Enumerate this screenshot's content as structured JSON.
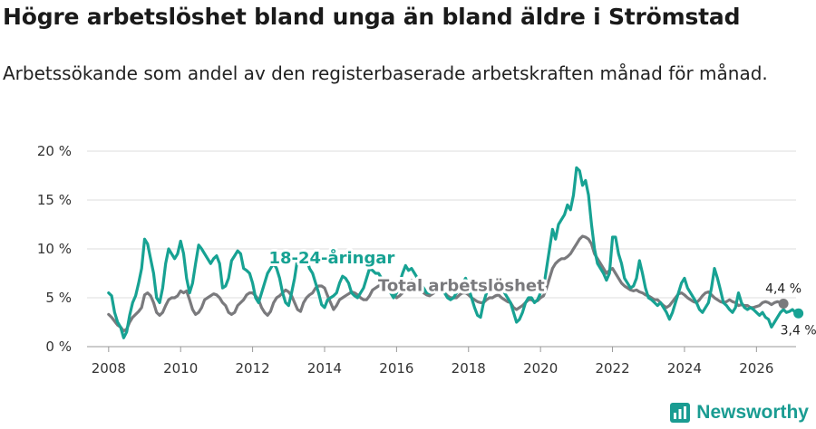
{
  "title": "Högre arbetslöshet bland unga än bland äldre i Strömstad",
  "subtitle": "Arbetssökande som andel av den registerbaserade arbetskraften månad för månad.",
  "brand": {
    "name": "Newsworthy",
    "icon": "newsworthy-logo-icon",
    "color": "#1a9c92"
  },
  "colors": {
    "youth": "#17a293",
    "total": "#7a7a7d",
    "grid": "#dcdcdc",
    "axis": "#999999"
  },
  "chart_data": {
    "type": "line",
    "title": "Högre arbetslöshet bland unga än bland äldre i Strömstad",
    "xlabel": "",
    "ylabel": "",
    "xlim": [
      2007.4,
      2027.1
    ],
    "ylim": [
      0,
      20
    ],
    "x_ticks": [
      2008,
      2010,
      2012,
      2014,
      2016,
      2018,
      2020,
      2022,
      2024,
      2026
    ],
    "x_tick_labels": [
      "2008",
      "2010",
      "2012",
      "2014",
      "2016",
      "2018",
      "2020",
      "2022",
      "2024",
      "2026"
    ],
    "y_ticks": [
      0,
      5,
      10,
      15,
      20
    ],
    "y_tick_labels": [
      "0 %",
      "5 %",
      "10 %",
      "15 %",
      "20 %"
    ],
    "grid": true,
    "series": [
      {
        "name": "18-24-åringar",
        "label_anchor": [
          2014.2,
          8.5
        ],
        "end_label": "3,4 %",
        "x_start": 2008.0,
        "step": 0.0833333,
        "values": [
          5.5,
          5.2,
          3.5,
          2.5,
          2.0,
          0.9,
          1.5,
          3.2,
          4.5,
          5.2,
          6.5,
          8.0,
          11.0,
          10.5,
          9.0,
          7.5,
          5.0,
          4.5,
          6.0,
          8.5,
          10.0,
          9.5,
          9.0,
          9.5,
          10.8,
          9.5,
          7.0,
          5.5,
          6.5,
          8.5,
          10.4,
          10.0,
          9.5,
          9.0,
          8.5,
          9.0,
          9.3,
          8.5,
          6.0,
          6.2,
          7.0,
          8.8,
          9.3,
          9.8,
          9.5,
          8.0,
          7.8,
          7.5,
          6.5,
          5.0,
          4.5,
          5.5,
          6.5,
          7.5,
          8.0,
          8.5,
          8.0,
          7.0,
          5.5,
          4.5,
          4.2,
          5.5,
          7.0,
          9.0,
          9.5,
          9.8,
          9.0,
          8.0,
          7.5,
          6.5,
          5.5,
          4.3,
          4.0,
          4.8,
          5.0,
          5.2,
          5.5,
          6.5,
          7.2,
          7.0,
          6.5,
          5.5,
          5.2,
          5.0,
          5.5,
          6.0,
          7.0,
          8.0,
          7.8,
          7.5,
          7.5,
          7.0,
          6.5,
          6.0,
          5.5,
          5.0,
          5.5,
          6.5,
          7.5,
          8.3,
          7.8,
          8.0,
          7.5,
          7.0,
          6.5,
          6.0,
          5.5,
          5.5,
          6.0,
          6.2,
          6.0,
          5.8,
          5.5,
          5.0,
          4.8,
          5.0,
          5.5,
          6.0,
          6.5,
          7.0,
          6.0,
          5.0,
          4.0,
          3.2,
          3.0,
          4.5,
          5.5,
          6.0,
          6.5,
          6.8,
          6.5,
          6.0,
          5.5,
          5.0,
          4.5,
          3.5,
          2.5,
          2.8,
          3.5,
          4.5,
          5.0,
          5.0,
          4.5,
          4.8,
          5.5,
          6.0,
          8.0,
          10.0,
          12.0,
          11.0,
          12.5,
          13.0,
          13.5,
          14.5,
          14.0,
          15.5,
          18.3,
          18.0,
          16.5,
          17.0,
          15.5,
          12.5,
          10.0,
          8.5,
          8.0,
          7.5,
          6.8,
          7.5,
          11.2,
          11.2,
          9.5,
          8.5,
          7.0,
          6.5,
          6.0,
          6.2,
          7.0,
          8.8,
          7.5,
          6.0,
          5.0,
          4.8,
          4.5,
          4.2,
          4.5,
          4.0,
          3.5,
          2.8,
          3.5,
          4.5,
          5.5,
          6.5,
          7.0,
          6.0,
          5.5,
          5.0,
          4.5,
          3.8,
          3.5,
          4.0,
          4.5,
          6.0,
          8.0,
          7.0,
          5.8,
          4.5,
          4.2,
          3.8,
          3.5,
          4.0,
          5.5,
          4.5,
          4.0,
          3.8,
          4.0,
          3.8,
          3.5,
          3.2,
          3.5,
          3.0,
          2.8,
          2.0,
          2.5,
          3.0,
          3.5,
          3.8,
          3.5,
          3.6,
          3.8,
          3.5,
          3.4
        ]
      },
      {
        "name": "Total arbetslöshet",
        "label_anchor": [
          2017.8,
          5.7
        ],
        "end_label": "4,4 %",
        "x_start": 2008.0,
        "step": 0.0833333,
        "values": [
          3.3,
          3.0,
          2.6,
          2.2,
          2.0,
          1.6,
          1.8,
          2.5,
          3.0,
          3.3,
          3.6,
          4.0,
          5.3,
          5.5,
          5.2,
          4.5,
          3.5,
          3.2,
          3.5,
          4.2,
          4.8,
          5.0,
          5.0,
          5.2,
          5.7,
          5.5,
          5.7,
          4.8,
          3.8,
          3.3,
          3.5,
          4.0,
          4.8,
          5.0,
          5.2,
          5.4,
          5.3,
          5.0,
          4.5,
          4.2,
          3.5,
          3.3,
          3.5,
          4.2,
          4.5,
          4.8,
          5.3,
          5.5,
          5.5,
          5.2,
          4.8,
          4.0,
          3.5,
          3.2,
          3.6,
          4.5,
          5.0,
          5.2,
          5.5,
          5.8,
          5.6,
          5.2,
          4.5,
          3.8,
          3.6,
          4.5,
          5.0,
          5.3,
          5.5,
          6.0,
          6.2,
          6.2,
          6.0,
          5.2,
          4.5,
          3.8,
          4.2,
          4.8,
          5.0,
          5.2,
          5.4,
          5.6,
          5.5,
          5.3,
          5.0,
          4.8,
          4.8,
          5.2,
          5.8,
          6.0,
          6.2,
          6.3,
          6.5,
          6.3,
          6.0,
          5.5,
          5.0,
          5.2,
          5.5,
          6.0,
          6.5,
          6.8,
          6.5,
          6.0,
          5.8,
          5.5,
          5.3,
          5.2,
          5.4,
          5.6,
          5.8,
          5.8,
          5.5,
          5.2,
          5.0,
          5.0,
          5.0,
          5.3,
          5.5,
          5.5,
          5.3,
          5.0,
          4.8,
          4.6,
          4.5,
          4.5,
          4.8,
          5.0,
          5.0,
          5.2,
          5.3,
          5.0,
          4.8,
          4.6,
          4.5,
          4.0,
          3.8,
          4.0,
          4.2,
          4.5,
          4.8,
          4.8,
          4.6,
          4.7,
          5.0,
          5.2,
          6.0,
          7.0,
          8.0,
          8.5,
          8.8,
          9.0,
          9.0,
          9.2,
          9.5,
          10.0,
          10.5,
          11.0,
          11.3,
          11.2,
          11.0,
          10.5,
          9.5,
          9.0,
          8.5,
          8.0,
          7.5,
          7.8,
          8.0,
          7.5,
          7.0,
          6.5,
          6.2,
          6.0,
          5.8,
          5.7,
          5.8,
          5.6,
          5.5,
          5.3,
          5.2,
          5.0,
          4.8,
          4.8,
          4.5,
          4.2,
          4.0,
          4.2,
          4.6,
          5.0,
          5.4,
          5.5,
          5.3,
          5.0,
          4.8,
          4.6,
          4.5,
          4.8,
          5.2,
          5.5,
          5.6,
          5.3,
          5.0,
          4.8,
          4.6,
          4.5,
          4.6,
          4.8,
          4.6,
          4.5,
          4.2,
          4.3,
          4.2,
          4.2,
          4.0,
          4.0,
          4.1,
          4.2,
          4.5,
          4.6,
          4.5,
          4.3,
          4.5,
          4.6,
          4.5,
          4.4
        ]
      }
    ]
  }
}
